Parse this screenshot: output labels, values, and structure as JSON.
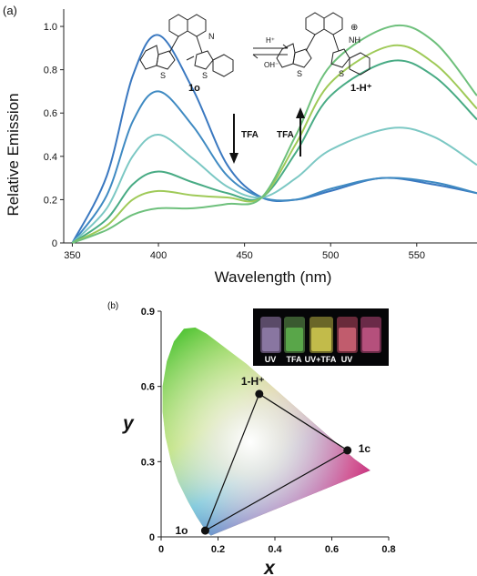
{
  "panel_a": {
    "label": "(a)",
    "tfa_down": "TFA",
    "tfa_up": "TFA",
    "mol_left": "1o",
    "mol_right": "1-H⁺",
    "arrow_top": "H⁺",
    "arrow_bottom": "OH⁻",
    "ring_n": "N",
    "ring_nh": "NH",
    "ring_plus": "⊕",
    "sulfur": "S"
  },
  "panel_b": {
    "label": "(b)",
    "photo_labels": [
      "UV",
      "TFA",
      "UV+TFA",
      "UV"
    ]
  },
  "chart_data": [
    {
      "type": "line",
      "xlabel": "Wavelength (nm)",
      "ylabel": "Relative Emission",
      "xlim": [
        345,
        585
      ],
      "ylim": [
        0,
        1.08
      ],
      "x_ticks": [
        350,
        400,
        450,
        500,
        550
      ],
      "y_ticks": [
        0,
        0.2,
        0.4,
        0.6,
        0.8,
        1.0
      ],
      "y_tick_labels": [
        "0",
        "0.2",
        "0.4",
        "0.6",
        "0.8",
        "1.0"
      ],
      "isosbestic_point": [
        460,
        0.21
      ],
      "series": [
        {
          "color": "#3a78c0",
          "peak1": [
            400,
            0.96
          ],
          "peak2": [
            530,
            0.3
          ],
          "values_x": [
            350,
            370,
            385,
            400,
            420,
            440,
            460,
            480,
            500,
            530,
            560,
            585
          ],
          "values_y": [
            0.0,
            0.31,
            0.77,
            0.96,
            0.71,
            0.36,
            0.21,
            0.2,
            0.24,
            0.3,
            0.27,
            0.23
          ]
        },
        {
          "color": "#3f8ac2",
          "peak1": [
            400,
            0.7
          ],
          "peak2": [
            530,
            0.28
          ],
          "values_x": [
            350,
            370,
            385,
            400,
            420,
            440,
            460,
            480,
            500,
            530,
            560,
            585
          ],
          "values_y": [
            0.0,
            0.22,
            0.56,
            0.7,
            0.54,
            0.31,
            0.21,
            0.2,
            0.25,
            0.3,
            0.28,
            0.23
          ]
        },
        {
          "color": "#7cc8c4",
          "peak1": [
            400,
            0.5
          ],
          "peak2": [
            535,
            0.53
          ],
          "values_x": [
            350,
            370,
            385,
            400,
            420,
            440,
            460,
            480,
            500,
            535,
            560,
            585
          ],
          "values_y": [
            0.0,
            0.16,
            0.4,
            0.5,
            0.39,
            0.26,
            0.21,
            0.3,
            0.43,
            0.53,
            0.49,
            0.36
          ]
        },
        {
          "color": "#48ab84",
          "peak1": [
            400,
            0.33
          ],
          "peak2": [
            535,
            0.84
          ],
          "values_x": [
            350,
            370,
            385,
            400,
            420,
            440,
            460,
            480,
            500,
            535,
            560,
            585
          ],
          "values_y": [
            0.0,
            0.11,
            0.27,
            0.33,
            0.28,
            0.23,
            0.21,
            0.42,
            0.68,
            0.84,
            0.77,
            0.57
          ]
        },
        {
          "color": "#9fca58",
          "peak1": [
            400,
            0.24
          ],
          "peak2": [
            535,
            0.91
          ],
          "values_x": [
            350,
            370,
            385,
            400,
            420,
            440,
            460,
            480,
            500,
            535,
            560,
            585
          ],
          "values_y": [
            0.0,
            0.08,
            0.2,
            0.24,
            0.22,
            0.21,
            0.21,
            0.46,
            0.74,
            0.91,
            0.83,
            0.62
          ]
        },
        {
          "color": "#6ec07c",
          "peak1": [
            400,
            0.16
          ],
          "peak2": [
            535,
            1.0
          ],
          "values_x": [
            350,
            370,
            385,
            400,
            420,
            440,
            460,
            480,
            500,
            535,
            560,
            585
          ],
          "values_y": [
            0.0,
            0.06,
            0.13,
            0.16,
            0.16,
            0.18,
            0.21,
            0.5,
            0.82,
            1.0,
            0.93,
            0.68
          ]
        }
      ]
    },
    {
      "type": "scatter",
      "xlabel": "x",
      "ylabel": "y",
      "xlim": [
        0,
        0.8
      ],
      "ylim": [
        0,
        0.9
      ],
      "x_ticks": [
        0,
        0.2,
        0.4,
        0.6,
        0.8
      ],
      "y_ticks": [
        0,
        0.3,
        0.6,
        0.9
      ],
      "x_tick_labels": [
        "0",
        "0.2",
        "0.4",
        "0.6",
        "0.8"
      ],
      "y_tick_labels": [
        "0",
        "0.3",
        "0.6",
        "0.9"
      ],
      "points": [
        {
          "label": "1o",
          "x": 0.155,
          "y": 0.025
        },
        {
          "label": "1-H⁺",
          "x": 0.345,
          "y": 0.57
        },
        {
          "label": "1c",
          "x": 0.655,
          "y": 0.345
        }
      ],
      "gamut_locus": [
        [
          0.175,
          0.005
        ],
        [
          0.17,
          0.01
        ],
        [
          0.16,
          0.02
        ],
        [
          0.145,
          0.045
        ],
        [
          0.125,
          0.08
        ],
        [
          0.095,
          0.14
        ],
        [
          0.06,
          0.22
        ],
        [
          0.035,
          0.3
        ],
        [
          0.015,
          0.4
        ],
        [
          0.005,
          0.5
        ],
        [
          0.005,
          0.6
        ],
        [
          0.02,
          0.7
        ],
        [
          0.045,
          0.78
        ],
        [
          0.08,
          0.83
        ],
        [
          0.12,
          0.835
        ],
        [
          0.16,
          0.81
        ],
        [
          0.23,
          0.75
        ],
        [
          0.3,
          0.69
        ],
        [
          0.37,
          0.62
        ],
        [
          0.45,
          0.54
        ],
        [
          0.53,
          0.46
        ],
        [
          0.61,
          0.38
        ],
        [
          0.68,
          0.31
        ],
        [
          0.735,
          0.265
        ]
      ]
    }
  ]
}
